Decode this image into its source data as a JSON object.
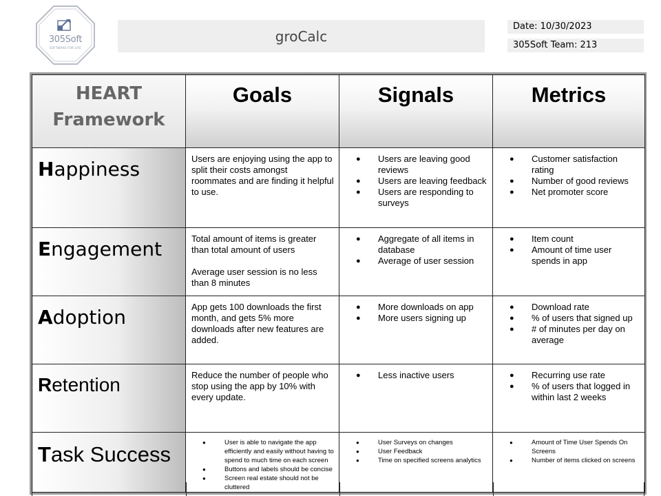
{
  "header": {
    "logo": {
      "name": "305Soft",
      "tagline": "SOFTWARE FOR LIFE"
    },
    "title": "groCalc",
    "date": "Date: 10/30/2023",
    "team": "305Soft Team: 213"
  },
  "table": {
    "corner": [
      "HEART",
      "Framework"
    ],
    "columns": [
      "Goals",
      "Signals",
      "Metrics"
    ],
    "rows": [
      {
        "initial": "H",
        "rest": "appiness",
        "goals": [
          "Users are enjoying using the app to split their costs amongst roommates and are finding it helpful to use."
        ],
        "signals": [
          "Users are leaving good reviews",
          "Users are leaving feedback",
          "Users are responding to surveys"
        ],
        "metrics": [
          "Customer satisfaction rating",
          "Number of good reviews",
          "Net promoter score"
        ]
      },
      {
        "initial": "E",
        "rest": "ngagement",
        "goals": [
          "Total amount of items is greater than total amount of users",
          "Average user session is no less than 8 minutes"
        ],
        "signals": [
          "Aggregate of all items in database",
          "Average of user session"
        ],
        "metrics": [
          "Item count",
          "Amount of time user spends in app"
        ]
      },
      {
        "initial": "A",
        "rest": "doption",
        "goals": [
          "App gets 100 downloads the first month, and gets 5% more downloads after new features are added."
        ],
        "signals": [
          "More downloads on app",
          "More users signing up"
        ],
        "metrics": [
          "Download rate",
          "% of users that signed up",
          "# of minutes per day on average"
        ]
      },
      {
        "initial": "R",
        "rest": "etention",
        "goals": [
          "Reduce the number of people who stop using the app by 10% with every update."
        ],
        "signals": [
          "Less inactive users"
        ],
        "metrics": [
          "Recurring use rate",
          "% of users that logged in within last 2 weeks"
        ]
      },
      {
        "initial": "T",
        "rest": "ask Success",
        "goals": [
          "User is able to navigate the app efficiently and easily without having to spend to much time on each screen",
          "Buttons and labels should be concise",
          "Screen real estate should not be cluttered"
        ],
        "signals": [
          "User Surveys on changes",
          "User Feedback",
          "Time on specified screens analytics"
        ],
        "metrics": [
          "Amount of Time User Spends On Screens",
          "Number of items clicked on screens"
        ]
      }
    ]
  }
}
